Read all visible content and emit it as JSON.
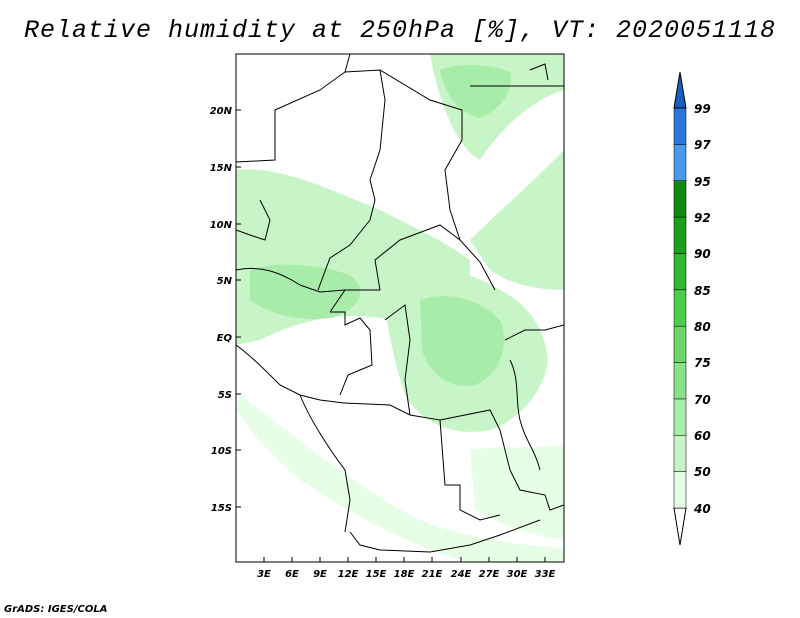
{
  "title": "Relative humidity at 250hPa [%], VT: 2020051118",
  "credit": "GrADS: IGES/COLA",
  "map": {
    "lat_ticks": [
      "20N",
      "15N",
      "10N",
      "5N",
      "EQ",
      "5S",
      "10S",
      "15S"
    ],
    "lon_ticks": [
      "3E",
      "6E",
      "9E",
      "12E",
      "15E",
      "18E",
      "21E",
      "24E",
      "27E",
      "30E",
      "33E"
    ]
  },
  "colorbar": {
    "levels": [
      "40",
      "50",
      "60",
      "70",
      "75",
      "80",
      "85",
      "90",
      "92",
      "95",
      "97",
      "99"
    ],
    "colors": [
      "#ffffff",
      "#e6fde6",
      "#c8f5c8",
      "#a8ecaa",
      "#88e288",
      "#6cd86c",
      "#4ccc4c",
      "#30b830",
      "#1aa01a",
      "#108a10",
      "#4a9aea",
      "#2a78d8",
      "#1660c0"
    ]
  }
}
